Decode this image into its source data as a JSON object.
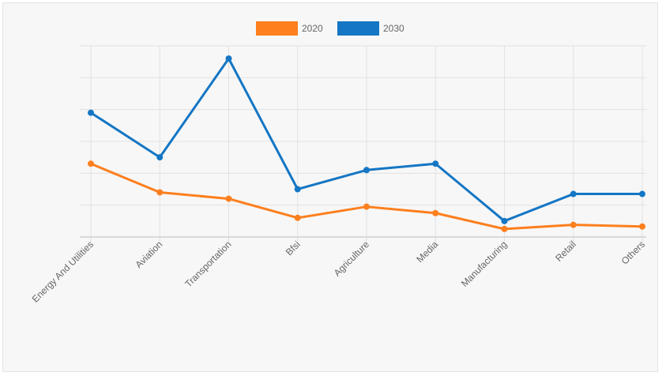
{
  "chart_data": {
    "type": "line",
    "categories": [
      "Energy And Utilities",
      "Aviation",
      "Transportation",
      "Bfsi",
      "Agriculture",
      "Media",
      "Manufacturing",
      "Retail",
      "Others"
    ],
    "series": [
      {
        "name": "2020",
        "color": "#fd7f1e",
        "values": [
          23,
          14,
          12,
          6,
          9.5,
          7.5,
          2.5,
          3.8,
          3.3
        ]
      },
      {
        "name": "2030",
        "color": "#1476c4",
        "values": [
          39,
          25,
          56,
          15,
          21,
          23,
          5,
          13.5,
          13.5
        ]
      }
    ],
    "ylim": [
      0,
      60
    ],
    "y_tick_step": 10,
    "y_tick_labels_visible": false,
    "grid": true,
    "legend_position": "top-center",
    "title": "",
    "xlabel": "",
    "ylabel": ""
  }
}
